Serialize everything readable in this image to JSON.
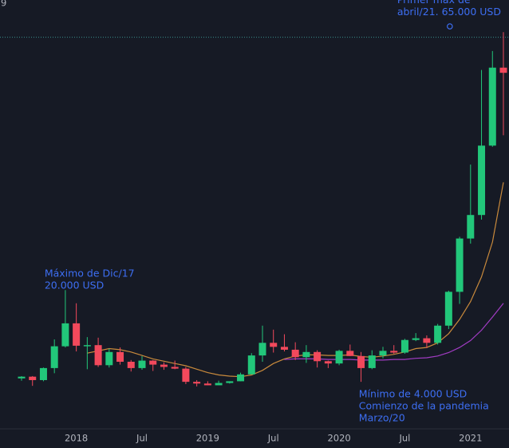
{
  "chart_data": {
    "type": "candlestick",
    "partial_label": "9",
    "categories": [
      null,
      null,
      null,
      null,
      null,
      "2018",
      null,
      null,
      null,
      null,
      null,
      "Jul",
      null,
      null,
      null,
      null,
      null,
      "2019",
      null,
      null,
      null,
      null,
      null,
      "Jul",
      null,
      null,
      null,
      null,
      null,
      "2020",
      null,
      null,
      null,
      null,
      null,
      "Jul",
      null,
      null,
      null,
      null,
      null,
      "2021",
      null,
      null,
      null
    ],
    "open": [
      4600,
      4900,
      4300,
      6400,
      10200,
      14200,
      10200,
      10400,
      6900,
      9200,
      7500,
      6400,
      7700,
      7000,
      6600,
      6300,
      4000,
      3700,
      3400,
      3800,
      4100,
      5300,
      8600,
      10800,
      10100,
      9600,
      8300,
      9200,
      7600,
      7200,
      9400,
      8500,
      6400,
      8600,
      9400,
      9100,
      11300,
      11600,
      10800,
      13800,
      19700,
      29000,
      33100,
      45200,
      58800
    ],
    "high": [
      5000,
      5000,
      6500,
      11400,
      20000,
      17700,
      11800,
      11700,
      9800,
      10000,
      7800,
      8500,
      7800,
      7400,
      7700,
      6600,
      4300,
      4100,
      4200,
      4100,
      5600,
      9000,
      13800,
      13100,
      12300,
      10900,
      10400,
      9500,
      7700,
      9600,
      10500,
      9200,
      9500,
      10100,
      10400,
      11500,
      12500,
      12100,
      14100,
      19900,
      29300,
      41900,
      58400,
      61700,
      65000
    ],
    "low": [
      4200,
      3300,
      4100,
      5500,
      10000,
      9300,
      6200,
      6600,
      6500,
      7000,
      5800,
      6100,
      5900,
      6100,
      6200,
      3600,
      3200,
      3400,
      3400,
      3700,
      4100,
      5300,
      7500,
      9100,
      9300,
      7800,
      7300,
      6500,
      6400,
      6900,
      8500,
      4000,
      6200,
      8100,
      8900,
      8900,
      11100,
      9900,
      10500,
      13200,
      17600,
      28100,
      32300,
      45000,
      47000
    ],
    "close": [
      4900,
      4300,
      6400,
      10200,
      14200,
      10300,
      10400,
      6900,
      9200,
      7500,
      6400,
      7700,
      7000,
      6600,
      6300,
      4000,
      3700,
      3400,
      3800,
      4100,
      5300,
      8600,
      10800,
      10100,
      9600,
      8300,
      9200,
      7600,
      7200,
      9400,
      8500,
      6400,
      8600,
      9400,
      9100,
      11300,
      11600,
      10800,
      13800,
      19700,
      29000,
      33100,
      45200,
      58800,
      57900
    ],
    "up_color": "#22c77a",
    "down_color": "#f2495c",
    "lines": [
      {
        "color": "#c98a3c",
        "values": [
          null,
          null,
          null,
          null,
          null,
          null,
          9000,
          9400,
          9800,
          9600,
          9200,
          8600,
          8000,
          7600,
          7200,
          6800,
          6200,
          5600,
          5200,
          5000,
          4900,
          5200,
          6000,
          7200,
          8000,
          8500,
          8700,
          8700,
          8600,
          8600,
          8700,
          8400,
          8300,
          8500,
          8800,
          9200,
          9800,
          10000,
          10800,
          12400,
          14900,
          18000,
          22300,
          28400,
          38800
        ]
      },
      {
        "color": "#a23cc4",
        "values": [
          null,
          null,
          null,
          null,
          null,
          null,
          null,
          null,
          null,
          null,
          null,
          null,
          null,
          null,
          null,
          null,
          null,
          null,
          null,
          null,
          null,
          null,
          null,
          null,
          7900,
          8000,
          8000,
          8000,
          7900,
          7900,
          7900,
          7800,
          7800,
          7800,
          7900,
          7900,
          8100,
          8200,
          8500,
          9100,
          10000,
          11200,
          13000,
          15300,
          17700
        ]
      }
    ],
    "reference_line": {
      "value": 64100,
      "color": "#3a8f8a"
    },
    "ylim": [
      -4200,
      70600
    ],
    "annotations": [
      {
        "index": 34.3,
        "value": 70500,
        "lines": [
          "Primer max de",
          "abril/21. 65.000 USD"
        ],
        "marker": 66000
      },
      {
        "index": 2.1,
        "value": 22800,
        "lines": [
          "Máximo de Dic/17",
          "20.000 USD"
        ]
      },
      {
        "index": 30.8,
        "value": 1800,
        "lines": [
          "Mínimo de 4.000 USD",
          "Comienzo de la pandemia",
          "Marzo/20"
        ]
      }
    ],
    "annotation_color": "#3d6ef2"
  }
}
